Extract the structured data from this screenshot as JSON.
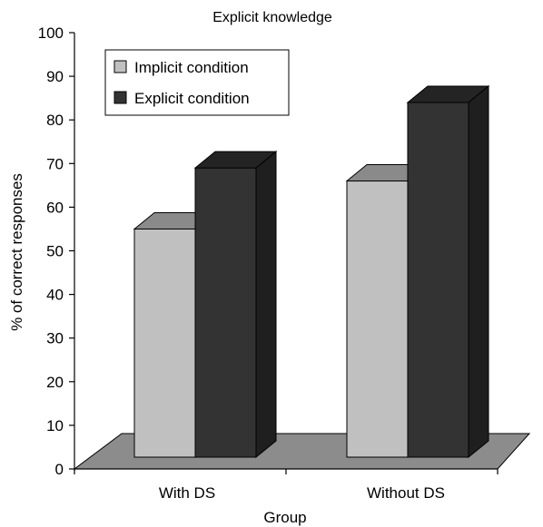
{
  "chart_data": {
    "type": "bar",
    "title": "Explicit knowledge",
    "xlabel": "Group",
    "ylabel": "% of correct responses",
    "categories": [
      "With DS",
      "Without DS"
    ],
    "series": [
      {
        "name": "Implicit condition",
        "values": [
          55,
          66
        ],
        "color": "#c0c0c0"
      },
      {
        "name": "Explicit condition",
        "values": [
          69,
          84
        ],
        "color": "#333333"
      }
    ],
    "ylim": [
      0,
      100
    ],
    "yticks": [
      0,
      10,
      20,
      30,
      40,
      50,
      60,
      70,
      80,
      90,
      100
    ],
    "grid": false,
    "legend_position": "top-left",
    "floor_color": "#8c8c8c"
  }
}
